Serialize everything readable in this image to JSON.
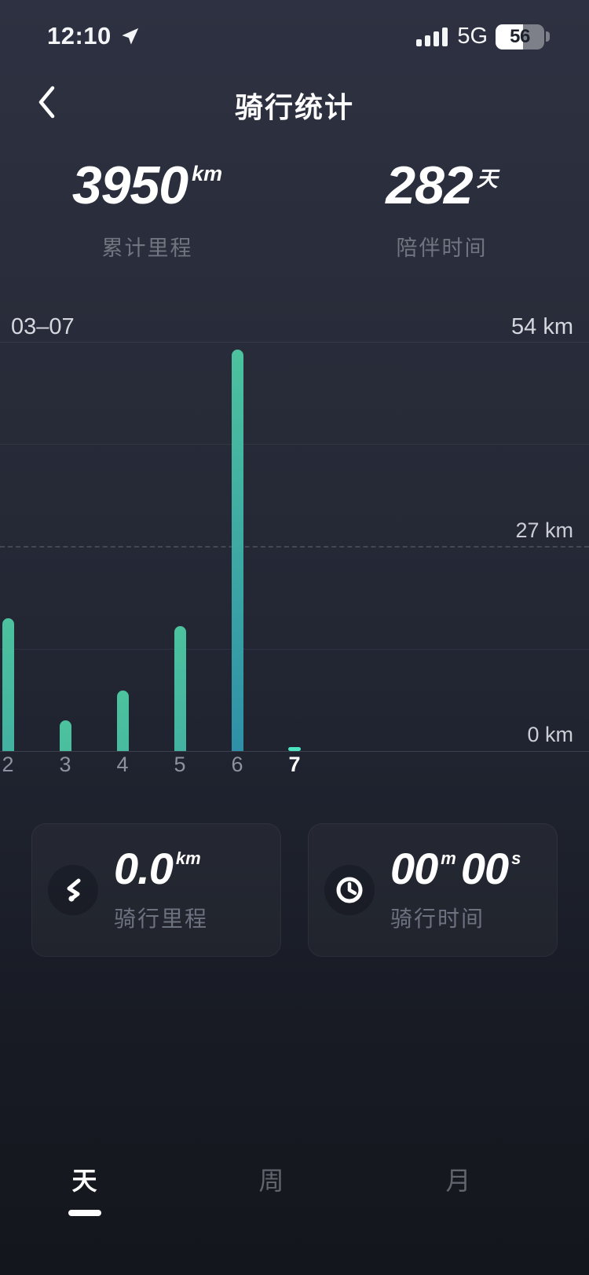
{
  "status_bar": {
    "time": "12:10",
    "network": "5G",
    "battery_percent": 56,
    "battery_label": "56"
  },
  "header": {
    "title": "骑行统计"
  },
  "summary": {
    "distance": {
      "value": "3950",
      "unit": "km",
      "label": "累计里程"
    },
    "days": {
      "value": "282",
      "unit": "天",
      "label": "陪伴时间"
    }
  },
  "chart": {
    "date_label": "03–07",
    "y_axis_labels": [
      "54 km",
      "27 km",
      "0 km"
    ]
  },
  "chart_data": {
    "type": "bar",
    "categories": [
      "2",
      "3",
      "4",
      "5",
      "6",
      "7"
    ],
    "values": [
      17.5,
      4,
      8,
      16.5,
      53,
      0
    ],
    "selected_category": "7",
    "title": "",
    "xlabel": "",
    "ylabel": "km",
    "ylim": [
      0,
      54
    ],
    "y_ticks": [
      0,
      27,
      54
    ],
    "grid": "horizontal, 27km line dashed",
    "date_label": "03–07",
    "bar_color_top": "#4cc29e",
    "bar_color_bottom": "#2e8fa8",
    "selected_bar_color": "#4be3c1"
  },
  "cards": {
    "distance": {
      "icon": "route-icon",
      "value": "0.0",
      "unit": "km",
      "label": "骑行里程"
    },
    "duration": {
      "icon": "clock-icon",
      "minutes": "00",
      "minutes_unit": "m",
      "seconds": "00",
      "seconds_unit": "s",
      "label": "骑行时间"
    }
  },
  "tabs": [
    {
      "label": "天",
      "selected": true
    },
    {
      "label": "周",
      "selected": false
    },
    {
      "label": "月",
      "selected": false
    }
  ],
  "colors": {
    "background_top": "#2d3141",
    "background_bottom": "#14161d",
    "bar_gradient_top": "#4cc29e",
    "bar_gradient_bottom": "#2e8fa8",
    "selected_bar": "#4be3c1",
    "muted_text": "#70757f"
  }
}
